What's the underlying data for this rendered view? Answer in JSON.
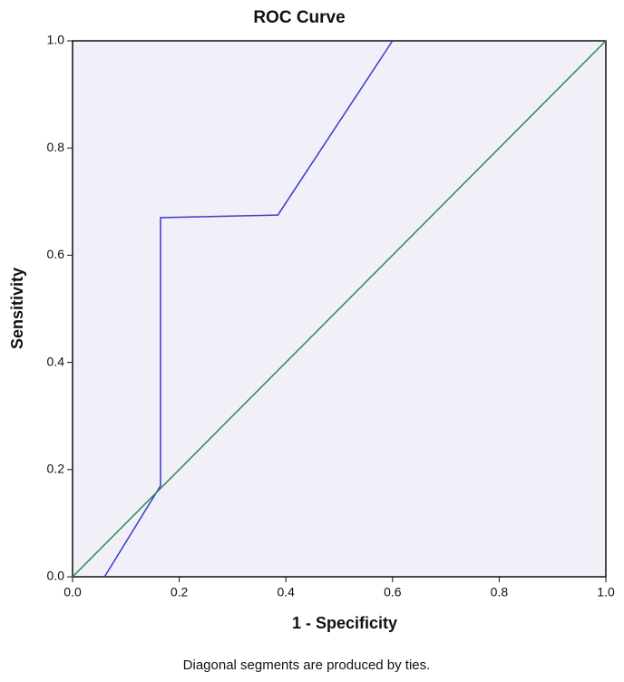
{
  "chart_data": {
    "type": "line",
    "title": "ROC Curve",
    "xlabel": "1 - Specificity",
    "ylabel": "Sensitivity",
    "note": "Diagonal segments are produced by ties.",
    "series": [
      {
        "color": "#3a3ad0",
        "x": [
          0.06,
          0.165,
          0.165,
          0.385,
          0.6
        ],
        "values": [
          0,
          0.17,
          0.67,
          0.675,
          1.0
        ]
      },
      {
        "color": "#2a8a4a",
        "x": [
          0,
          1
        ],
        "values": [
          0,
          1
        ]
      }
    ],
    "xlim": [
      0,
      1
    ],
    "ylim": [
      0,
      1
    ],
    "xticks": [
      {
        "value": 0,
        "label": "0.0"
      },
      0.2,
      0.4,
      0.6,
      0.8,
      {
        "value": 1,
        "label": "1.0"
      }
    ],
    "yticks": [
      {
        "value": 0,
        "label": "0.0"
      },
      0.2,
      0.4,
      0.6,
      0.8,
      {
        "value": 1,
        "label": "1.0"
      }
    ],
    "background": "#f1f0f8"
  }
}
